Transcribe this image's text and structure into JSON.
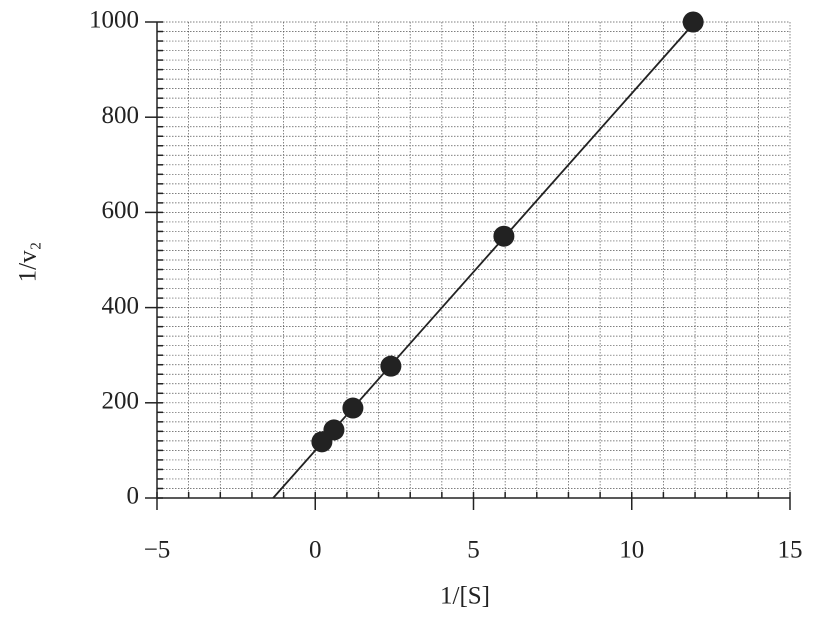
{
  "chart_data": {
    "type": "scatter",
    "xlabel": "1/[S]",
    "ylabel": "1/v₂",
    "x": [
      0.21,
      0.59,
      1.19,
      2.39,
      5.96,
      11.94
    ],
    "values": [
      118,
      143,
      189,
      277,
      550,
      1000
    ],
    "color": "#222222",
    "fit": {
      "x": [
        -1.33,
        12
      ],
      "values": [
        0,
        1000
      ],
      "color": "#222222"
    },
    "xlim": [
      -5,
      15
    ],
    "ylim": [
      0,
      1000
    ],
    "xticks": [
      {
        "value": -5,
        "label": "−5"
      },
      0,
      5,
      10,
      15
    ],
    "yticks": [
      0,
      200,
      400,
      600,
      800,
      1000
    ],
    "x_minor_ticks": [
      -5,
      -4,
      -3,
      -2,
      -1,
      0,
      1,
      2,
      3,
      4,
      5,
      6,
      7,
      8,
      9,
      10,
      11,
      12,
      13,
      14,
      15
    ],
    "y_minor_ticks": [
      0,
      20,
      40,
      60,
      80,
      100,
      120,
      140,
      160,
      180,
      200,
      220,
      240,
      260,
      280,
      300,
      320,
      340,
      360,
      380,
      400,
      420,
      440,
      460,
      480,
      500,
      520,
      540,
      560,
      580,
      600,
      620,
      640,
      660,
      680,
      700,
      720,
      740,
      760,
      780,
      800,
      820,
      840,
      860,
      880,
      900,
      920,
      940,
      960,
      980,
      1000
    ],
    "grid": true
  }
}
